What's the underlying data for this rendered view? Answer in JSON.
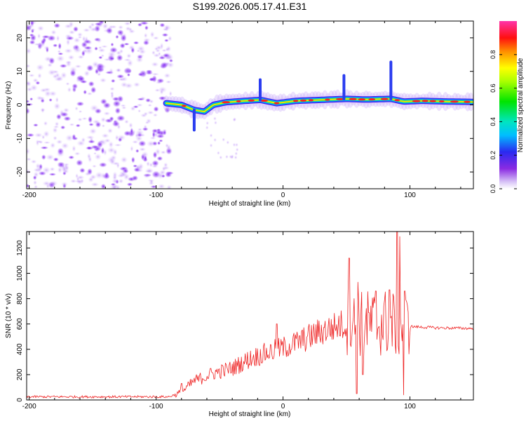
{
  "title": "S199.2026.005.17.41.E31",
  "chart_data": [
    {
      "type": "heatmap",
      "xlabel": "Height of straight line (km)",
      "ylabel": "Frequency (Hz)",
      "xlim": [
        -202,
        150
      ],
      "ylim": [
        -25,
        25
      ],
      "xticks": [
        -200,
        -100,
        0,
        100
      ],
      "xtick_labels": [
        "-200",
        "-100",
        "0",
        "100"
      ],
      "yticks": [
        -20,
        -10,
        0,
        10,
        20
      ],
      "ytick_labels": [
        "-20",
        "-10",
        "0",
        "10",
        "20"
      ],
      "colorbar": {
        "label": "Normalized spectral amplitude",
        "range": [
          0,
          1
        ],
        "ticks": [
          0.0,
          0.2,
          0.4,
          0.6,
          0.8
        ],
        "tick_labels": [
          "0.0",
          "0.2",
          "0.4",
          "0.6",
          "0.8"
        ]
      },
      "noise_region_x": [
        -202,
        -92
      ],
      "ridge": [
        {
          "x": -92,
          "f": 0.5
        },
        {
          "x": -80,
          "f": 0.0
        },
        {
          "x": -70,
          "f": -1.5
        },
        {
          "x": -62,
          "f": -2.0
        },
        {
          "x": -55,
          "f": 0.0
        },
        {
          "x": -45,
          "f": 0.8
        },
        {
          "x": -30,
          "f": 1.2
        },
        {
          "x": -18,
          "f": 1.5
        },
        {
          "x": -5,
          "f": 0.5
        },
        {
          "x": 10,
          "f": 1.2
        },
        {
          "x": 30,
          "f": 1.5
        },
        {
          "x": 50,
          "f": 1.8
        },
        {
          "x": 65,
          "f": 1.6
        },
        {
          "x": 85,
          "f": 1.8
        },
        {
          "x": 95,
          "f": 1.0
        },
        {
          "x": 110,
          "f": 1.2
        },
        {
          "x": 130,
          "f": 1.0
        },
        {
          "x": 150,
          "f": 0.9
        }
      ]
    },
    {
      "type": "line",
      "xlabel": "Height of straight line (km)",
      "ylabel": "SNR (10 * v/v)",
      "xlim": [
        -202,
        150
      ],
      "ylim": [
        0,
        1330
      ],
      "xticks": [
        -200,
        -100,
        0,
        100
      ],
      "xtick_labels": [
        "-200",
        "-100",
        "0",
        "100"
      ],
      "yticks": [
        0,
        200,
        400,
        600,
        800,
        1000,
        1200
      ],
      "ytick_labels": [
        "0",
        "200",
        "400",
        "600",
        "800",
        "1000",
        "1200"
      ],
      "series": [
        {
          "name": "SNR",
          "color": "#ee2222",
          "envelope": [
            {
              "x": -202,
              "y": 25
            },
            {
              "x": -90,
              "y": 25
            },
            {
              "x": -80,
              "y": 60
            },
            {
              "x": -70,
              "y": 150
            },
            {
              "x": -55,
              "y": 210
            },
            {
              "x": -40,
              "y": 250
            },
            {
              "x": -25,
              "y": 330
            },
            {
              "x": -10,
              "y": 380
            },
            {
              "x": 0,
              "y": 410
            },
            {
              "x": 15,
              "y": 470
            },
            {
              "x": 30,
              "y": 540
            },
            {
              "x": 45,
              "y": 590
            },
            {
              "x": 60,
              "y": 600
            },
            {
              "x": 80,
              "y": 610
            },
            {
              "x": 100,
              "y": 580
            },
            {
              "x": 120,
              "y": 570
            },
            {
              "x": 150,
              "y": 565
            }
          ],
          "spikes": [
            {
              "x": -80,
              "y": 130
            },
            {
              "x": -5,
              "y": 600
            },
            {
              "x": 52,
              "y": 1120
            },
            {
              "x": 58,
              "y": 50
            },
            {
              "x": 59,
              "y": 930
            },
            {
              "x": 63,
              "y": 200
            },
            {
              "x": 73,
              "y": 860
            },
            {
              "x": 84,
              "y": 870
            },
            {
              "x": 90,
              "y": 1330
            },
            {
              "x": 92,
              "y": 1290
            },
            {
              "x": 95,
              "y": 40
            },
            {
              "x": 96,
              "y": 860
            }
          ]
        }
      ]
    }
  ]
}
